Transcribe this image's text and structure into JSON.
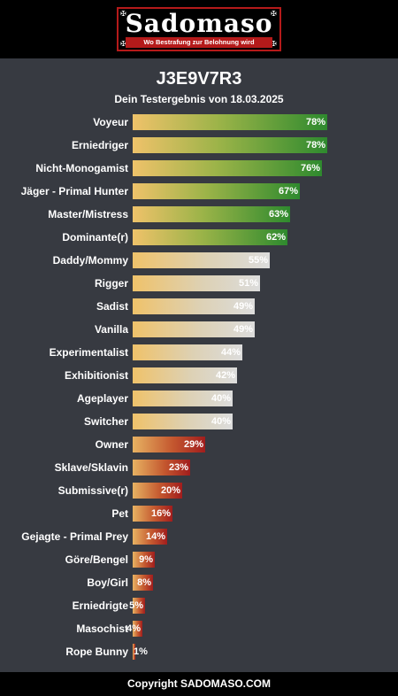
{
  "header": {
    "logo_text": "Sadomaso",
    "logo_tagline": "Wo Bestrafung zur Belohnung wird"
  },
  "title": "J3E9V7R3",
  "subtitle": "Dein Testergebnis von 18.03.2025",
  "colors": {
    "high": "#2e8a2e",
    "mid": "#dcdcdc",
    "low": "#a11d1d",
    "start": "#efc26a",
    "background": "#373a41"
  },
  "chart_data": {
    "type": "bar",
    "orientation": "horizontal",
    "categories": [
      "Voyeur",
      "Erniedriger",
      "Nicht-Monogamist",
      "Jäger - Primal Hunter",
      "Master/Mistress",
      "Dominante(r)",
      "Daddy/Mommy",
      "Rigger",
      "Sadist",
      "Vanilla",
      "Experimentalist",
      "Exhibitionist",
      "Ageplayer",
      "Switcher",
      "Owner",
      "Sklave/Sklavin",
      "Submissive(r)",
      "Pet",
      "Gejagte - Primal Prey",
      "Göre/Bengel",
      "Boy/Girl",
      "Erniedrigte",
      "Masochist",
      "Rope Bunny"
    ],
    "values": [
      78,
      78,
      76,
      67,
      63,
      62,
      55,
      51,
      49,
      49,
      44,
      42,
      40,
      40,
      29,
      23,
      20,
      16,
      14,
      9,
      8,
      5,
      4,
      1
    ],
    "labels": [
      "78%",
      "78%",
      "76%",
      "67%",
      "63%",
      "62%",
      "55%",
      "51%",
      "49%",
      "49%",
      "44%",
      "42%",
      "40%",
      "40%",
      "29%",
      "23%",
      "20%",
      "16%",
      "14%",
      "9%",
      "8%",
      "5%",
      "4%",
      "1%"
    ],
    "unit": "%",
    "xlim": [
      0,
      100
    ],
    "grid": false,
    "legend": "none"
  },
  "footer": "Copyright SADOMASO.COM"
}
